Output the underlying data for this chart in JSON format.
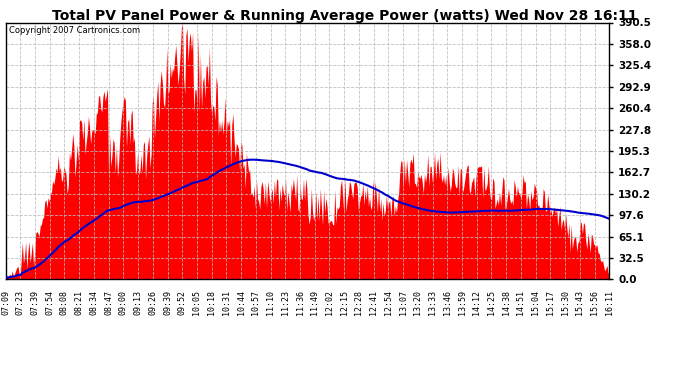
{
  "title": "Total PV Panel Power & Running Average Power (watts) Wed Nov 28 16:11",
  "copyright": "Copyright 2007 Cartronics.com",
  "yticks": [
    0.0,
    32.5,
    65.1,
    97.6,
    130.2,
    162.7,
    195.3,
    227.8,
    260.4,
    292.9,
    325.4,
    358.0,
    390.5
  ],
  "ymax": 390.5,
  "bg_color": "#ffffff",
  "plot_bg_color": "#ffffff",
  "grid_color": "#bbbbbb",
  "bar_color": "#ff0000",
  "avg_color": "#0000cc",
  "xtick_labels": [
    "07:09",
    "07:23",
    "07:39",
    "07:54",
    "08:08",
    "08:21",
    "08:34",
    "08:47",
    "09:00",
    "09:13",
    "09:26",
    "09:39",
    "09:52",
    "10:05",
    "10:18",
    "10:31",
    "10:44",
    "10:57",
    "11:10",
    "11:23",
    "11:36",
    "11:49",
    "12:02",
    "12:15",
    "12:28",
    "12:41",
    "12:54",
    "13:07",
    "13:20",
    "13:33",
    "13:46",
    "13:59",
    "14:12",
    "14:25",
    "14:38",
    "14:51",
    "15:04",
    "15:17",
    "15:30",
    "15:43",
    "15:56",
    "16:11"
  ],
  "n_xtick_labels": 42
}
